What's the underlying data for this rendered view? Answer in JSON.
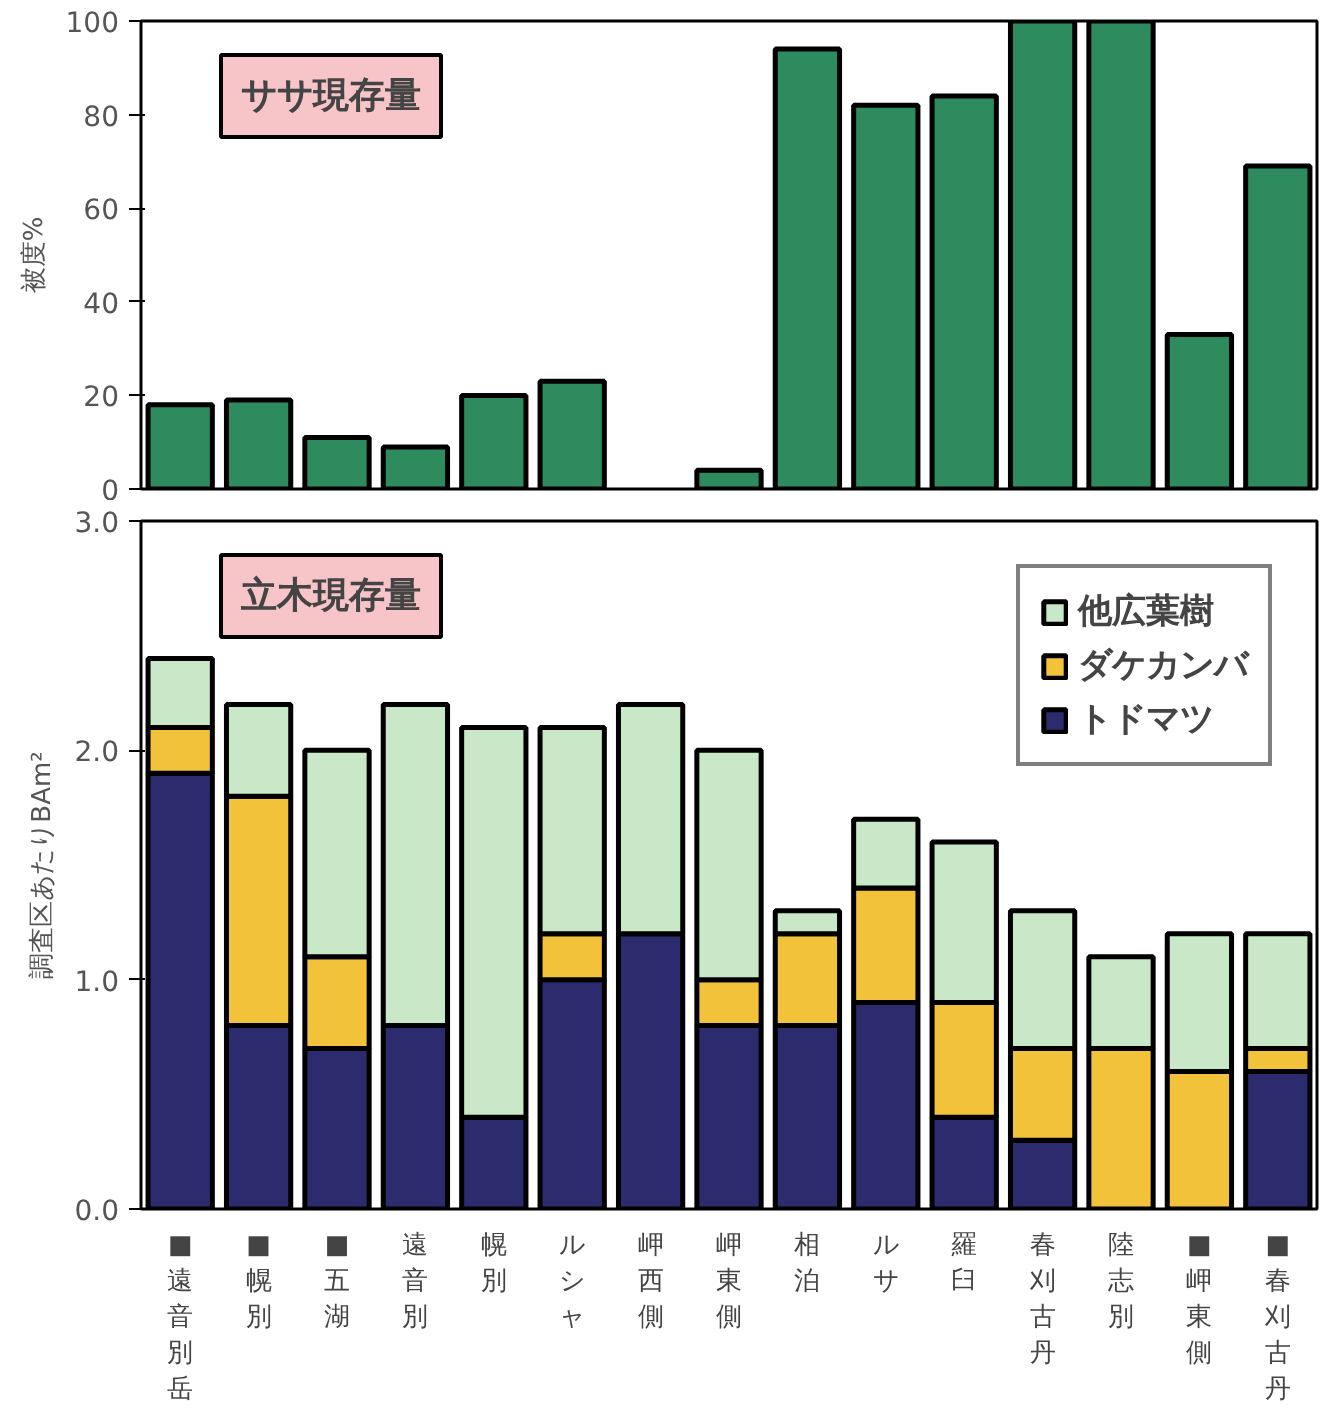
{
  "chart_data": [
    {
      "type": "bar",
      "title": "ササ現存量",
      "ylabel": "被度%",
      "categories": [
        "■遠音別岳",
        "■幌別",
        "■五湖",
        "遠音別",
        "幌別",
        "ルシャ",
        "岬西側",
        "岬東側",
        "相泊",
        "ルサ",
        "羅臼",
        "春刈古丹",
        "陸志別",
        "■岬東側",
        "■春刈古丹"
      ],
      "series": [
        {
          "color": "#2e8b5e",
          "values": [
            18,
            19,
            11,
            9,
            20,
            23,
            null,
            4,
            94,
            82,
            84,
            100,
            100,
            33,
            69
          ]
        }
      ],
      "ylim": [
        0,
        100
      ],
      "yticks": [
        0,
        20,
        40,
        60,
        80,
        100
      ],
      "tick_labels": "y",
      "grid": false,
      "legend": false
    },
    {
      "type": "bar",
      "title": "立木現存量",
      "ylabel": "調査区あたりBAm²",
      "stacked": true,
      "categories": [
        "■遠音別岳",
        "■幌別",
        "■五湖",
        "遠音別",
        "幌別",
        "ルシャ",
        "岬西側",
        "岬東側",
        "相泊",
        "ルサ",
        "羅臼",
        "春刈古丹",
        "陸志別",
        "■岬東側",
        "■春刈古丹"
      ],
      "series": [
        {
          "name": "トドマツ",
          "color": "#2b2b6e",
          "values": [
            1.9,
            0.8,
            0.7,
            0.8,
            0.4,
            1.0,
            1.2,
            0.8,
            0.8,
            0.9,
            0.4,
            0.3,
            0,
            0,
            0.6
          ]
        },
        {
          "name": "ダケカンバ",
          "color": "#f2c23a",
          "values": [
            0.2,
            1.0,
            0.4,
            0,
            0,
            0.2,
            0,
            0.2,
            0.4,
            0.5,
            0.5,
            0.4,
            0.7,
            0.6,
            0.1
          ]
        },
        {
          "name": "他広葉樹",
          "color": "#c8e8c8",
          "values": [
            0.3,
            0.4,
            0.9,
            1.4,
            1.7,
            0.9,
            1.0,
            1.0,
            0.1,
            0.3,
            0.7,
            0.6,
            0.4,
            0.6,
            0.5
          ]
        }
      ],
      "ylim": [
        0,
        3
      ],
      "yticks": [
        {
          "value": 0,
          "label": "0.0"
        },
        {
          "value": 1,
          "label": "1.0"
        },
        {
          "value": 2,
          "label": "2.0"
        },
        {
          "value": 3,
          "label": "3.0"
        }
      ],
      "grid": false,
      "legend": "top right"
    }
  ]
}
